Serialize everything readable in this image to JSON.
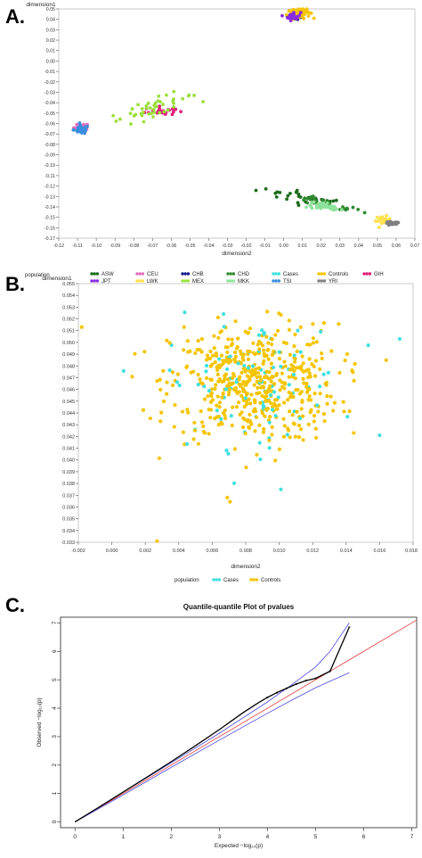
{
  "panels": {
    "a": "A.",
    "b": "B.",
    "c": "C."
  },
  "chart_data": [
    {
      "type": "scatter",
      "xlabel": "dimension2",
      "ylabel": "dimension1",
      "xlim": [
        -0.12,
        0.07
      ],
      "ylim": [
        -0.17,
        0.05
      ],
      "x_ticks": [
        "-0.12",
        "-0.11",
        "-0.10",
        "-0.09",
        "-0.08",
        "-0.07",
        "-0.06",
        "-0.05",
        "-0.04",
        "-0.03",
        "-0.02",
        "-0.01",
        "0.00",
        "0.01",
        "0.02",
        "0.03",
        "0.04",
        "0.05",
        "0.06",
        "0.07"
      ],
      "y_ticks": [
        "0.05",
        "0.04",
        "0.03",
        "0.02",
        "0.01",
        "0.00",
        "-0.01",
        "-0.02",
        "-0.03",
        "-0.04",
        "-0.05",
        "-0.06",
        "-0.07",
        "-0.08",
        "-0.09",
        "-0.10",
        "-0.11",
        "-0.12",
        "-0.13",
        "-0.14",
        "-0.15",
        "-0.16",
        "-0.17"
      ],
      "legend_title": "population",
      "legend_position": "bottom",
      "series": [
        {
          "name": "ASW",
          "color": "#1a6b1a",
          "n": 30,
          "cx": 0.012,
          "cy": -0.132,
          "sx": 0.013,
          "sy": 0.006
        },
        {
          "name": "CEU",
          "color": "#e26fc0",
          "n": 15,
          "cx": -0.108,
          "cy": -0.064,
          "sx": 0.002,
          "sy": 0.002
        },
        {
          "name": "CHB",
          "color": "#1a1a8c",
          "n": 20,
          "cx": 0.006,
          "cy": 0.042,
          "sx": 0.002,
          "sy": 0.001
        },
        {
          "name": "CHD",
          "color": "#2f8a2f",
          "n": 30,
          "cx": 0.022,
          "cy": -0.137,
          "sx": 0.01,
          "sy": 0.004
        },
        {
          "name": "Cases",
          "color": "#40e0e0",
          "n": 15,
          "cx": 0.008,
          "cy": 0.046,
          "sx": 0.002,
          "sy": 0.002
        },
        {
          "name": "Controls",
          "color": "#f5c400",
          "n": 90,
          "cx": 0.008,
          "cy": 0.047,
          "sx": 0.003,
          "sy": 0.003
        },
        {
          "name": "GIH",
          "color": "#e0207a",
          "n": 25,
          "cx": -0.066,
          "cy": -0.048,
          "sx": 0.004,
          "sy": 0.002
        },
        {
          "name": "JPT",
          "color": "#8a2be2",
          "n": 25,
          "cx": 0.005,
          "cy": 0.043,
          "sx": 0.002,
          "sy": 0.002
        },
        {
          "name": "LWK",
          "color": "#ffe14d",
          "n": 20,
          "cx": 0.053,
          "cy": -0.153,
          "sx": 0.002,
          "sy": 0.002
        },
        {
          "name": "MEX",
          "color": "#9be03c",
          "n": 45,
          "cx": -0.07,
          "cy": -0.045,
          "sx": 0.012,
          "sy": 0.008
        },
        {
          "name": "MKK",
          "color": "#8ee29a",
          "n": 40,
          "cx": 0.022,
          "cy": -0.14,
          "sx": 0.005,
          "sy": 0.004
        },
        {
          "name": "TSI",
          "color": "#3a8ee0",
          "n": 30,
          "cx": -0.108,
          "cy": -0.066,
          "sx": 0.002,
          "sy": 0.002
        },
        {
          "name": "YRI",
          "color": "#808080",
          "n": 25,
          "cx": 0.058,
          "cy": -0.156,
          "sx": 0.002,
          "sy": 0.001
        }
      ]
    },
    {
      "type": "scatter",
      "xlabel": "dimension2",
      "ylabel": "dimension1",
      "xlim": [
        -0.002,
        0.018
      ],
      "ylim": [
        0.033,
        0.055
      ],
      "x_ticks": [
        "-0.002",
        "0.000",
        "0.002",
        "0.004",
        "0.006",
        "0.008",
        "0.010",
        "0.012",
        "0.014",
        "0.016",
        "0.018"
      ],
      "y_ticks": [
        "0.055",
        "0.054",
        "0.053",
        "0.052",
        "0.051",
        "0.050",
        "0.049",
        "0.048",
        "0.047",
        "0.046",
        "0.045",
        "0.044",
        "0.043",
        "0.042",
        "0.041",
        "0.040",
        "0.039",
        "0.038",
        "0.037",
        "0.036",
        "0.035",
        "0.034",
        "0.033"
      ],
      "legend_title": "population",
      "legend_position": "bottom",
      "series": [
        {
          "name": "Cases",
          "color": "#40e0e0",
          "n": 90,
          "cx": 0.0085,
          "cy": 0.0465,
          "sx": 0.0026,
          "sy": 0.0027
        },
        {
          "name": "Controls",
          "color": "#f5c400",
          "n": 520,
          "cx": 0.0085,
          "cy": 0.0465,
          "sx": 0.0025,
          "sy": 0.0025
        }
      ],
      "outliers": [
        {
          "series": "Controls",
          "x": -0.0018,
          "y": 0.0513
        },
        {
          "series": "Controls",
          "x": 0.0027,
          "y": 0.0331
        },
        {
          "series": "Cases",
          "x": 0.0172,
          "y": 0.0503
        },
        {
          "series": "Cases",
          "x": 0.016,
          "y": 0.0421
        },
        {
          "series": "Cases",
          "x": 0.0101,
          "y": 0.0375
        },
        {
          "series": "Controls",
          "x": 0.0069,
          "y": 0.0368
        }
      ]
    },
    {
      "type": "line",
      "title": "Quantile-quantile Plot of pvalues",
      "xlabel": "Expected  −log₁₀(p)",
      "ylabel": "Observed  −log₁₀(p)",
      "xlim": [
        -0.3,
        7.1
      ],
      "ylim": [
        -0.2,
        7.2
      ],
      "x_ticks": [
        "0",
        "1",
        "2",
        "3",
        "4",
        "5",
        "6",
        "7"
      ],
      "y_ticks": [
        "0",
        "1",
        "2",
        "3",
        "4",
        "5",
        "6",
        "7"
      ],
      "series": [
        {
          "name": "observed",
          "color": "#000000",
          "x": [
            0,
            0.5,
            1,
            1.5,
            2,
            2.5,
            3,
            3.5,
            3.8,
            4.0,
            4.2,
            4.4,
            4.6,
            4.8,
            5.0,
            5.3,
            5.7
          ],
          "y": [
            0,
            0.52,
            1.05,
            1.58,
            2.12,
            2.68,
            3.25,
            3.85,
            4.18,
            4.38,
            4.55,
            4.7,
            4.85,
            4.97,
            5.05,
            5.3,
            6.85
          ]
        },
        {
          "name": "diagonal",
          "color": "#e03a3a",
          "x": [
            0,
            7.1
          ],
          "y": [
            0,
            7.1
          ]
        },
        {
          "name": "upper band",
          "color": "#4a4ae0",
          "x": [
            0,
            1,
            2,
            3,
            4,
            4.5,
            5,
            5.3,
            5.5,
            5.7
          ],
          "y": [
            0,
            1.05,
            2.08,
            3.12,
            4.22,
            4.82,
            5.45,
            6.0,
            6.5,
            7.0
          ]
        },
        {
          "name": "lower band",
          "color": "#4a4ae0",
          "x": [
            0,
            1,
            2,
            3,
            4,
            4.5,
            5,
            5.3,
            5.5,
            5.7
          ],
          "y": [
            0,
            0.95,
            1.92,
            2.88,
            3.82,
            4.28,
            4.72,
            4.95,
            5.1,
            5.25
          ]
        }
      ]
    }
  ]
}
